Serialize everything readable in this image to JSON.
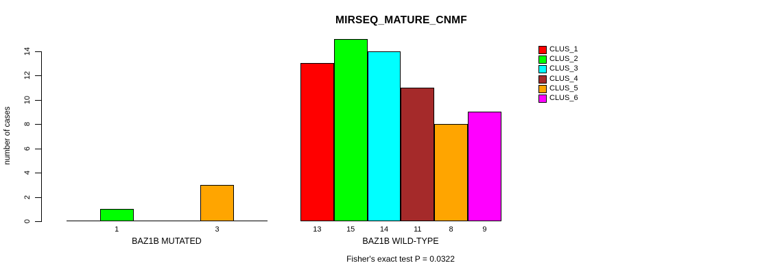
{
  "title": "MIRSEQ_MATURE_CNMF",
  "chart_data": {
    "type": "bar",
    "title": "MIRSEQ_MATURE_CNMF",
    "ylabel": "number of cases",
    "xlabel": "",
    "ylim": [
      0,
      15
    ],
    "yticks": [
      0,
      2,
      4,
      6,
      8,
      10,
      12,
      14
    ],
    "grid": false,
    "legend_position": "right",
    "series_labels": [
      "CLUS_1",
      "CLUS_2",
      "CLUS_3",
      "CLUS_4",
      "CLUS_5",
      "CLUS_6"
    ],
    "series_colors": [
      "#FF0000",
      "#00FF00",
      "#00FFFF",
      "#A52A2A",
      "#FFA500",
      "#FF00FF"
    ],
    "groups": [
      {
        "label": "BAZ1B MUTATED",
        "values": [
          0,
          1,
          0,
          0,
          3,
          0
        ]
      },
      {
        "label": "BAZ1B WILD-TYPE",
        "values": [
          13,
          15,
          14,
          11,
          8,
          9
        ]
      }
    ],
    "bar_value_labels_shown_for_nonzero": true,
    "annotation": "Fisher's exact test P = 0.0322"
  }
}
